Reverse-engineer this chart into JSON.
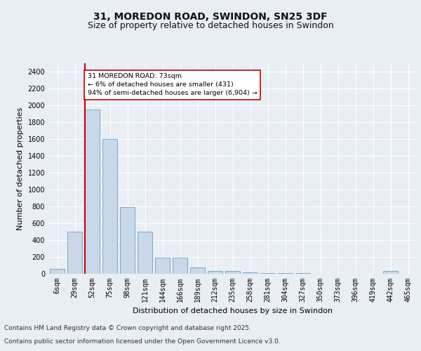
{
  "title1": "31, MOREDON ROAD, SWINDON, SN25 3DF",
  "title2": "Size of property relative to detached houses in Swindon",
  "xlabel": "Distribution of detached houses by size in Swindon",
  "ylabel": "Number of detached properties",
  "categories": [
    "6sqm",
    "29sqm",
    "52sqm",
    "75sqm",
    "98sqm",
    "121sqm",
    "144sqm",
    "166sqm",
    "189sqm",
    "212sqm",
    "235sqm",
    "258sqm",
    "281sqm",
    "304sqm",
    "327sqm",
    "350sqm",
    "373sqm",
    "396sqm",
    "419sqm",
    "442sqm",
    "465sqm"
  ],
  "values": [
    60,
    500,
    1950,
    1600,
    790,
    500,
    195,
    195,
    75,
    30,
    30,
    15,
    10,
    5,
    5,
    0,
    0,
    0,
    0,
    30,
    0
  ],
  "bar_color": "#c8d8e8",
  "bar_edge_color": "#6a9fc0",
  "vline_color": "#cc0000",
  "annotation_text": "31 MOREDON ROAD: 73sqm\n← 6% of detached houses are smaller (431)\n94% of semi-detached houses are larger (6,904) →",
  "annotation_box_color": "#ffffff",
  "annotation_box_edge": "#cc0000",
  "ylim": [
    0,
    2500
  ],
  "yticks": [
    0,
    200,
    400,
    600,
    800,
    1000,
    1200,
    1400,
    1600,
    1800,
    2000,
    2200,
    2400
  ],
  "bg_color": "#e8eef4",
  "plot_bg_color": "#e8eef4",
  "footer_line1": "Contains HM Land Registry data © Crown copyright and database right 2025.",
  "footer_line2": "Contains public sector information licensed under the Open Government Licence v3.0.",
  "title1_fontsize": 10,
  "title2_fontsize": 9,
  "axis_label_fontsize": 8,
  "tick_fontsize": 7,
  "annotation_fontsize": 6.8,
  "footer_fontsize": 6.5
}
